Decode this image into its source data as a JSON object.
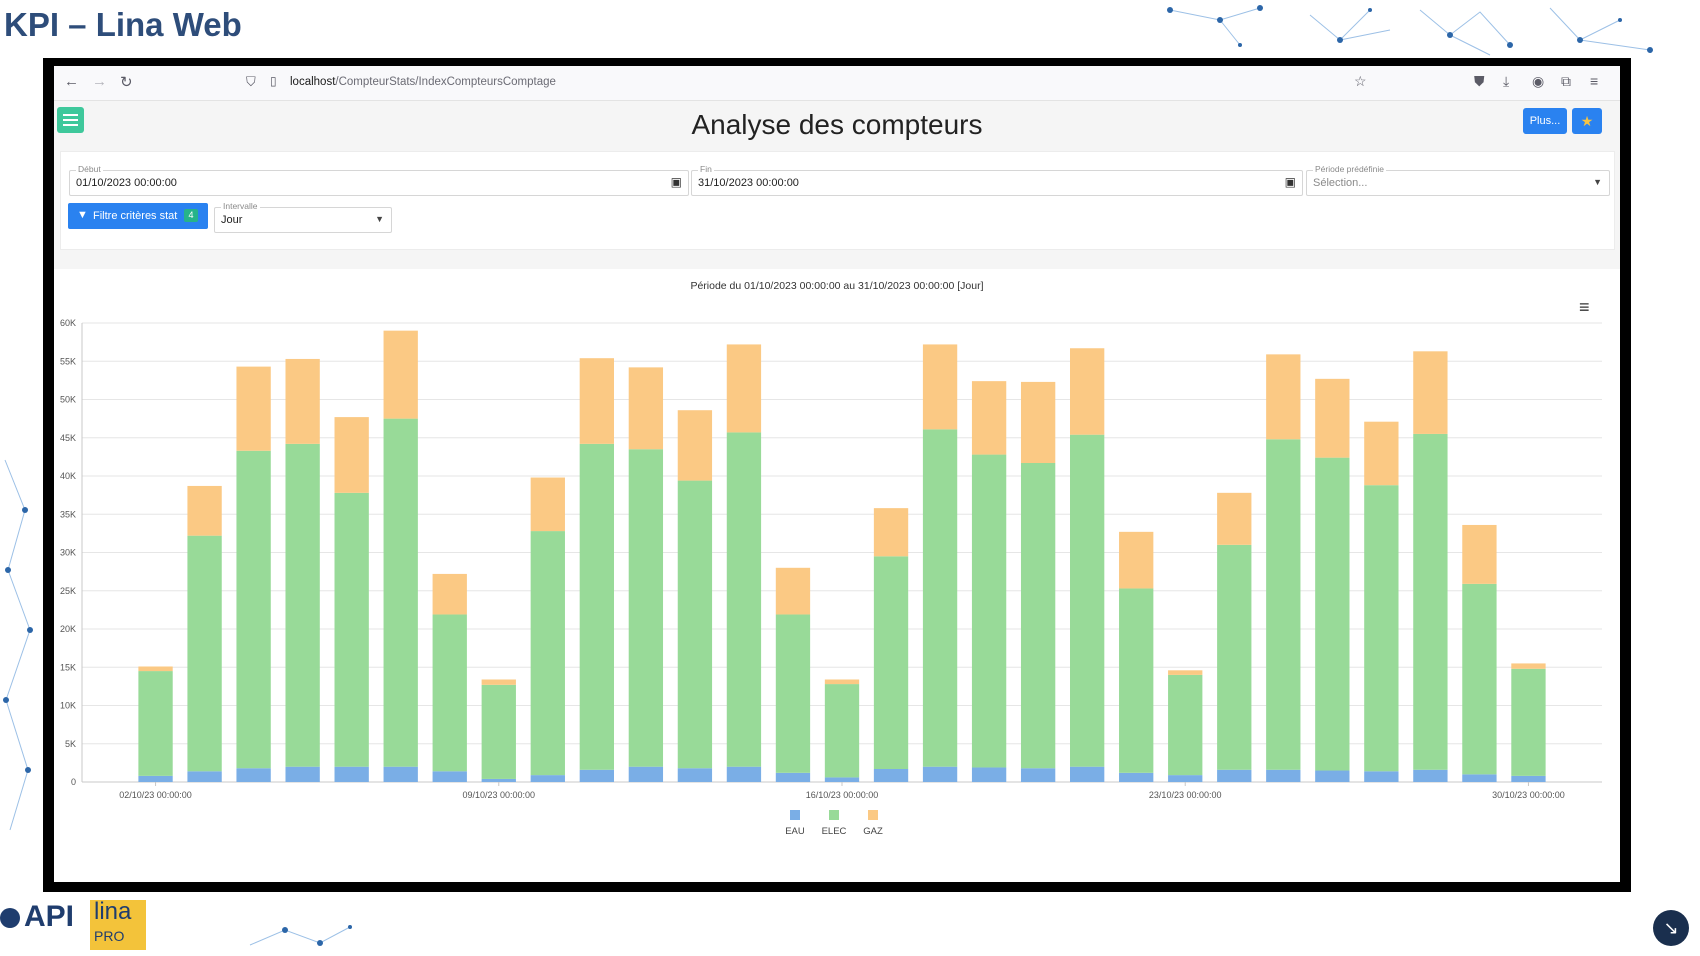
{
  "slide": {
    "title": "KPI – Lina Web"
  },
  "browser": {
    "url_host": "localhost",
    "url_path": "/CompteurStats/IndexCompteursComptage",
    "icons": [
      "back-icon",
      "forward-icon",
      "reload-icon",
      "shield-icon",
      "page-icon",
      "bookmark-star-icon",
      "pocket-icon",
      "download-icon",
      "account-icon",
      "extensions-icon",
      "app-menu-icon"
    ]
  },
  "page": {
    "title": "Analyse des compteurs",
    "plus_label": "Plus...",
    "star_glyph": "★"
  },
  "filters": {
    "debut_label": "Début",
    "debut_value": "01/10/2023 00:00:00",
    "fin_label": "Fin",
    "fin_value": "31/10/2023 00:00:00",
    "periode_label": "Période prédéfinie",
    "periode_placeholder": "Sélection...",
    "filter_button_label": "Filtre critères stat",
    "filter_count": "4",
    "intervalle_label": "Intervalle",
    "intervalle_value": "Jour"
  },
  "chart_data": {
    "type": "bar",
    "stacked": true,
    "title": "Période du 01/10/2023 00:00:00 au 31/10/2023 00:00:00  [Jour]",
    "ylim": [
      0,
      60000
    ],
    "yticks": [
      "0",
      "5K",
      "10K",
      "15K",
      "20K",
      "25K",
      "30K",
      "35K",
      "40K",
      "45K",
      "50K",
      "55K",
      "60K"
    ],
    "xticks": [
      {
        "index": 1,
        "label": "02/10/23 00:00:00"
      },
      {
        "index": 8,
        "label": "09/10/23 00:00:00"
      },
      {
        "index": 15,
        "label": "16/10/23 00:00:00"
      },
      {
        "index": 22,
        "label": "23/10/23 00:00:00"
      },
      {
        "index": 29,
        "label": "30/10/23 00:00:00"
      }
    ],
    "legend_position": "bottom",
    "categories": [
      "01/10",
      "02/10",
      "03/10",
      "04/10",
      "05/10",
      "06/10",
      "07/10",
      "08/10",
      "09/10",
      "10/10",
      "11/10",
      "12/10",
      "13/10",
      "14/10",
      "15/10",
      "16/10",
      "17/10",
      "18/10",
      "19/10",
      "20/10",
      "21/10",
      "22/10",
      "23/10",
      "24/10",
      "25/10",
      "26/10",
      "27/10",
      "28/10",
      "29/10",
      "30/10",
      "31/10"
    ],
    "series": [
      {
        "name": "EAU",
        "color": "#7aaee6",
        "values": [
          0,
          800,
          1400,
          1800,
          2000,
          2000,
          2000,
          1400,
          400,
          900,
          1600,
          2000,
          1800,
          2000,
          1200,
          600,
          1700,
          2000,
          1900,
          1800,
          2000,
          1200,
          900,
          1600,
          1600,
          1500,
          1400,
          1600,
          1000,
          800,
          0
        ]
      },
      {
        "name": "ELEC",
        "color": "#98da98",
        "values": [
          0,
          13700,
          30800,
          41500,
          42200,
          35800,
          45500,
          20500,
          12300,
          31900,
          42600,
          41500,
          37600,
          43700,
          20700,
          12200,
          27800,
          44100,
          40900,
          39900,
          43400,
          24100,
          13100,
          29400,
          43200,
          40900,
          37400,
          43900,
          24900,
          14000,
          0
        ]
      },
      {
        "name": "GAZ",
        "color": "#fbc984",
        "values": [
          0,
          600,
          6500,
          11000,
          11100,
          9900,
          11500,
          5300,
          700,
          7000,
          11200,
          10700,
          9200,
          11500,
          6100,
          600,
          6300,
          11100,
          9600,
          10600,
          11300,
          7400,
          600,
          6800,
          11100,
          10300,
          8300,
          10800,
          7700,
          700,
          0
        ]
      }
    ]
  },
  "logos": {
    "api": "API",
    "lina": "lina",
    "lina_sub": "PRO"
  },
  "colors": {
    "accent": "#2a82f0",
    "menu": "#3ec89b",
    "title": "#2e4d7a"
  }
}
